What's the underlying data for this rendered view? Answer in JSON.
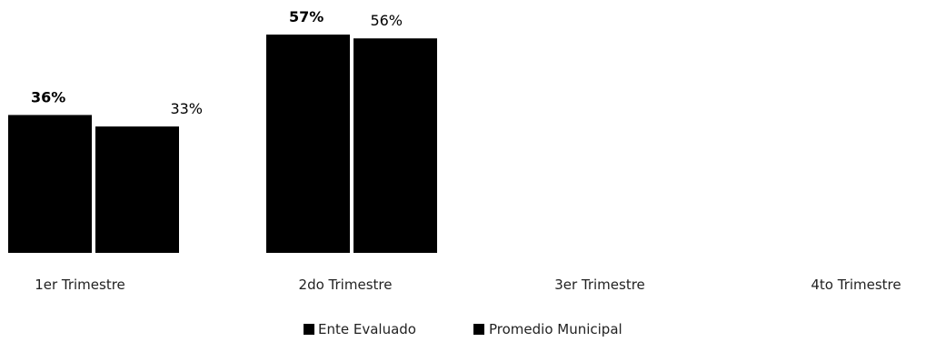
{
  "chart_data": {
    "type": "bar",
    "categories": [
      "1er Trimestre",
      "2do Trimestre",
      "3er Trimestre",
      "4to Trimestre"
    ],
    "series": [
      {
        "name": "Ente Evaluado",
        "values": [
          36,
          57,
          null,
          null
        ],
        "labels": [
          "36%",
          "57%",
          "",
          ""
        ],
        "color": "#000000"
      },
      {
        "name": "Promedio Municipal",
        "values": [
          33,
          56,
          null,
          null
        ],
        "labels": [
          "33%",
          "56%",
          "",
          ""
        ],
        "color": "#000000"
      }
    ],
    "ylim": [
      0,
      60
    ],
    "grid": false,
    "legend": "bottom-center"
  }
}
